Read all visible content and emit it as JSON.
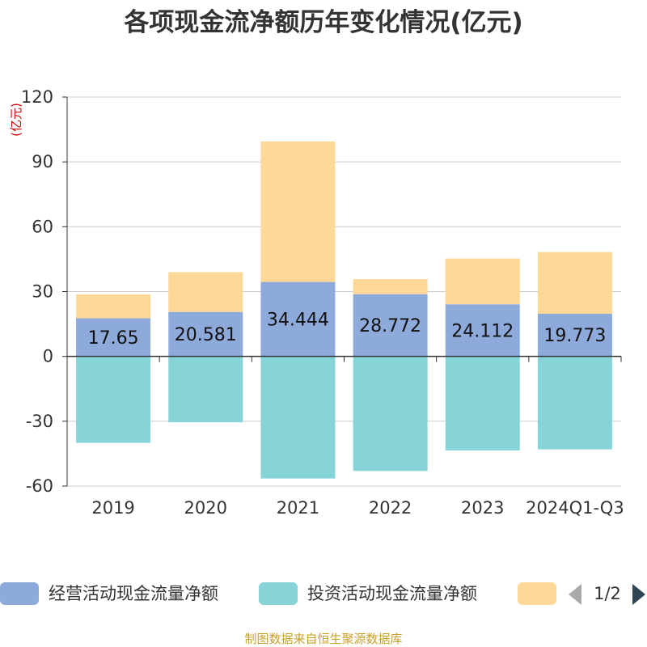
{
  "chart_data": {
    "type": "bar",
    "stacked": true,
    "title": "各项现金流净额历年变化情况(亿元)",
    "ylabel": "(亿元)",
    "xlabel": "",
    "ylim": [
      -60,
      120
    ],
    "yticks": [
      -60,
      -30,
      0,
      30,
      60,
      90,
      120
    ],
    "grid": true,
    "categories": [
      "2019",
      "2020",
      "2021",
      "2022",
      "2023",
      "2024Q1-Q3"
    ],
    "series": [
      {
        "name": "经营活动现金流量净额",
        "color": "#8eaadb",
        "values": [
          17.65,
          20.581,
          34.444,
          28.772,
          24.112,
          19.773
        ],
        "labels": [
          "17.65",
          "20.581",
          "34.444",
          "28.772",
          "24.112",
          "19.773"
        ]
      },
      {
        "name": "投资活动现金流量净额",
        "color": "#86d4d8",
        "values": [
          -40.0,
          -30.5,
          -56.5,
          -53.0,
          -43.5,
          -43.0
        ]
      },
      {
        "name": "",
        "color": "#fdd897",
        "values": [
          11.0,
          18.4,
          65.0,
          7.0,
          21.2,
          28.5
        ]
      }
    ],
    "legend": {
      "position": "bottom",
      "page": "1/2"
    },
    "source": "制图数据来自恒生聚源数据库"
  }
}
